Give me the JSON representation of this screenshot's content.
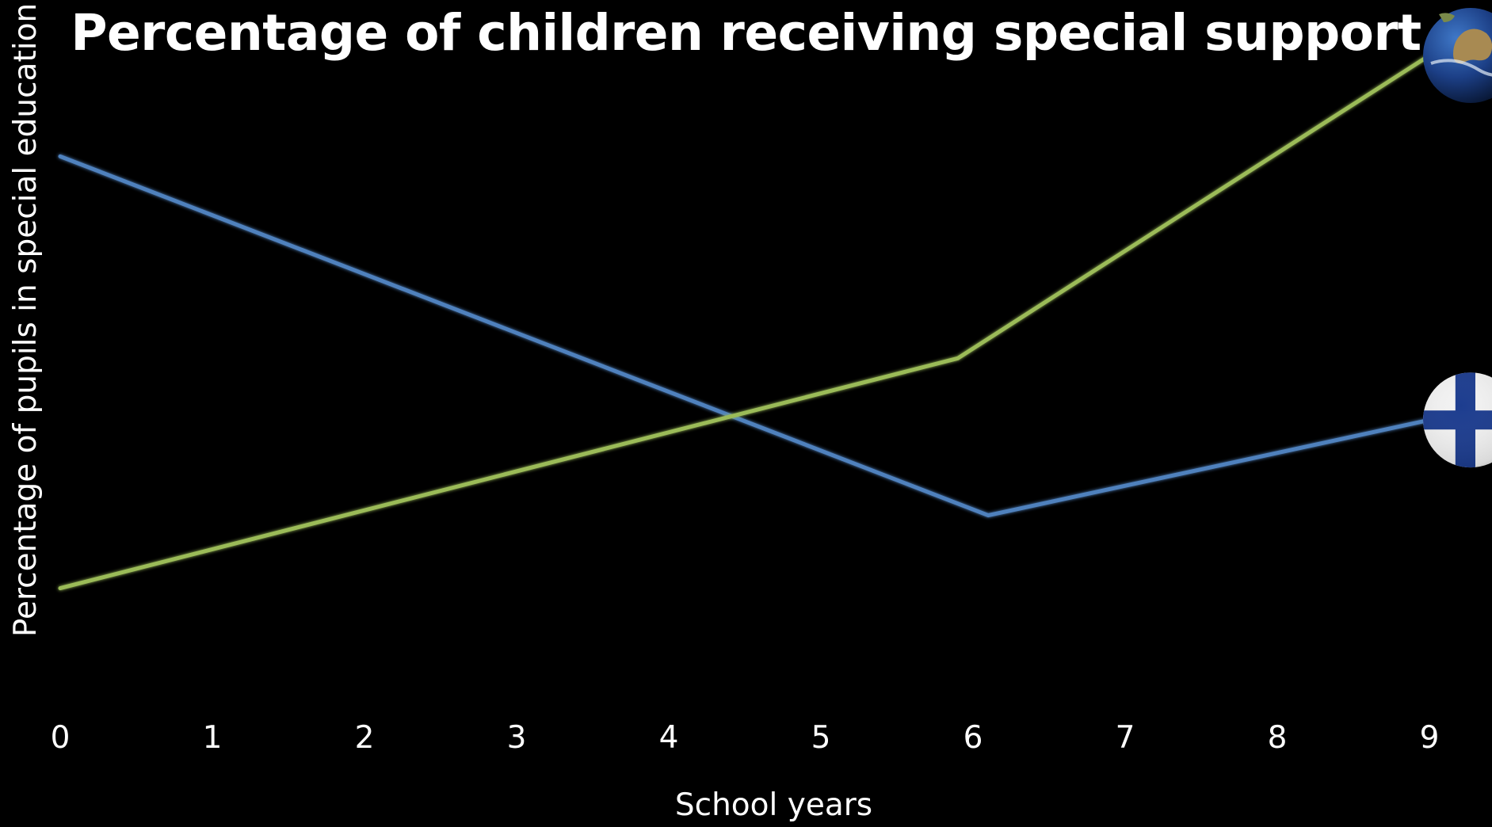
{
  "chart_data": {
    "type": "line",
    "title": "Percentage of children receiving special support",
    "xlabel": "School years",
    "ylabel": "Percentage of pupils in special education",
    "x_ticks": [
      "0",
      "1",
      "2",
      "3",
      "4",
      "5",
      "6",
      "7",
      "8",
      "9"
    ],
    "xlim": [
      0,
      9
    ],
    "y_ticks_shown": false,
    "grid": false,
    "series": [
      {
        "marker": "finland-flag-icon",
        "color": "#4f81bd",
        "x": [
          0,
          6.1,
          9
        ],
        "y": [
          0.82,
          0.18,
          0.35
        ]
      },
      {
        "marker": "globe-icon",
        "color": "#9bbb59",
        "x": [
          0,
          5.9,
          9
        ],
        "y": [
          0.05,
          0.46,
          1.0
        ]
      }
    ]
  }
}
